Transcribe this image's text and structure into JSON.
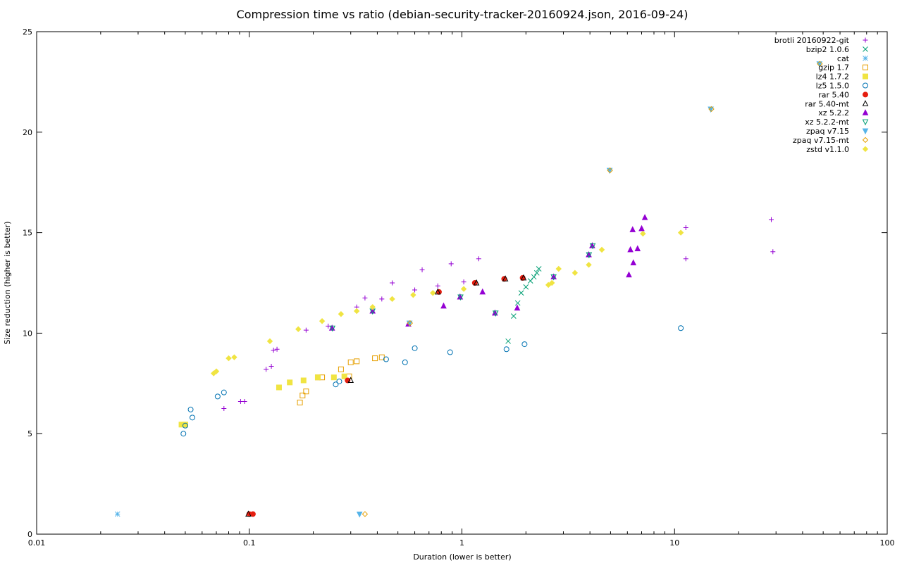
{
  "chart_data": {
    "type": "scatter",
    "title": "Compression time vs ratio (debian-security-tracker-20160924.json, 2016-09-24)",
    "xlabel": "Duration (lower is better)",
    "ylabel": "Size reduction (higher is better)",
    "xscale": "log",
    "xlim": [
      0.01,
      100
    ],
    "ylim": [
      0,
      25
    ],
    "x_ticks": [
      0.01,
      0.1,
      1,
      10,
      100
    ],
    "x_tick_labels": [
      "0.01",
      "0.1",
      "1",
      "10",
      "100"
    ],
    "y_ticks": [
      0,
      5,
      10,
      15,
      20,
      25
    ],
    "y_tick_labels": [
      "0",
      "5",
      "10",
      "15",
      "20",
      "25"
    ],
    "grid": false,
    "legend_position": "top-right",
    "series": [
      {
        "name": "brotli 20160922-git",
        "marker": "plus",
        "color": "#9400d3",
        "points": [
          [
            0.076,
            6.25
          ],
          [
            0.091,
            6.6
          ],
          [
            0.095,
            6.6
          ],
          [
            0.12,
            8.2
          ],
          [
            0.127,
            8.35
          ],
          [
            0.13,
            9.15
          ],
          [
            0.135,
            9.2
          ],
          [
            0.185,
            10.15
          ],
          [
            0.235,
            10.35
          ],
          [
            0.32,
            11.3
          ],
          [
            0.35,
            11.75
          ],
          [
            0.42,
            11.7
          ],
          [
            0.47,
            12.5
          ],
          [
            0.6,
            12.15
          ],
          [
            0.65,
            13.15
          ],
          [
            0.77,
            12.35
          ],
          [
            0.89,
            13.45
          ],
          [
            1.02,
            12.55
          ],
          [
            1.2,
            13.7
          ],
          [
            11.3,
            13.7
          ],
          [
            11.3,
            15.25
          ],
          [
            28.5,
            15.65
          ],
          [
            29.0,
            14.05
          ]
        ]
      },
      {
        "name": "bzip2 1.0.6",
        "marker": "x",
        "color": "#009e73",
        "points": [
          [
            1.65,
            9.6
          ],
          [
            1.75,
            10.85
          ],
          [
            1.83,
            11.5
          ],
          [
            1.9,
            12.0
          ],
          [
            2.0,
            12.3
          ],
          [
            2.1,
            12.6
          ],
          [
            2.18,
            12.8
          ],
          [
            2.25,
            13.0
          ],
          [
            2.3,
            13.2
          ]
        ]
      },
      {
        "name": "cat",
        "marker": "star",
        "color": "#56b4e9",
        "points": [
          [
            0.024,
            1.0
          ]
        ]
      },
      {
        "name": "gzip 1.7",
        "marker": "open-square",
        "color": "#e69f00",
        "points": [
          [
            0.173,
            6.55
          ],
          [
            0.178,
            6.9
          ],
          [
            0.185,
            7.1
          ],
          [
            0.21,
            7.8
          ],
          [
            0.22,
            7.8
          ],
          [
            0.27,
            8.2
          ],
          [
            0.3,
            8.55
          ],
          [
            0.32,
            8.6
          ],
          [
            0.39,
            8.75
          ],
          [
            0.42,
            8.8
          ],
          [
            0.295,
            7.85
          ]
        ]
      },
      {
        "name": "lz4 1.7.2",
        "marker": "filled-square",
        "color": "#f0e442",
        "points": [
          [
            0.048,
            5.45
          ],
          [
            0.05,
            5.45
          ],
          [
            0.138,
            7.3
          ],
          [
            0.155,
            7.55
          ],
          [
            0.18,
            7.65
          ],
          [
            0.21,
            7.8
          ],
          [
            0.25,
            7.8
          ],
          [
            0.28,
            7.85
          ]
        ]
      },
      {
        "name": "lz5 1.5.0",
        "marker": "open-circle",
        "color": "#0072b2",
        "points": [
          [
            0.049,
            5.0
          ],
          [
            0.05,
            5.4
          ],
          [
            0.053,
            6.2
          ],
          [
            0.054,
            5.8
          ],
          [
            0.071,
            6.85
          ],
          [
            0.076,
            7.05
          ],
          [
            0.255,
            7.45
          ],
          [
            0.265,
            7.6
          ],
          [
            0.44,
            8.7
          ],
          [
            0.54,
            8.55
          ],
          [
            0.6,
            9.25
          ],
          [
            0.88,
            9.05
          ],
          [
            1.62,
            9.2
          ],
          [
            1.97,
            9.45
          ],
          [
            10.7,
            10.25
          ]
        ]
      },
      {
        "name": "rar 5.40",
        "marker": "filled-circle",
        "color": "#e51e10",
        "points": [
          [
            0.1,
            1.0
          ],
          [
            0.104,
            1.0
          ],
          [
            0.29,
            7.65
          ],
          [
            0.78,
            12.05
          ],
          [
            1.15,
            12.5
          ],
          [
            1.58,
            12.7
          ],
          [
            1.93,
            12.75
          ]
        ]
      },
      {
        "name": "rar 5.40-mt",
        "marker": "open-triangle",
        "color": "#000000",
        "points": [
          [
            0.099,
            1.0
          ],
          [
            0.3,
            7.65
          ],
          [
            0.77,
            12.05
          ],
          [
            1.17,
            12.5
          ],
          [
            1.6,
            12.7
          ],
          [
            1.95,
            12.75
          ]
        ]
      },
      {
        "name": "xz 5.2.2",
        "marker": "filled-triangle",
        "color": "#9400d3",
        "points": [
          [
            0.245,
            10.25
          ],
          [
            0.38,
            11.1
          ],
          [
            0.56,
            10.45
          ],
          [
            0.82,
            11.35
          ],
          [
            0.98,
            11.8
          ],
          [
            1.25,
            12.05
          ],
          [
            1.43,
            11.0
          ],
          [
            1.82,
            11.25
          ],
          [
            2.7,
            12.8
          ],
          [
            3.95,
            13.9
          ],
          [
            4.1,
            14.35
          ],
          [
            6.1,
            12.9
          ],
          [
            6.2,
            14.15
          ],
          [
            6.35,
            15.15
          ],
          [
            6.4,
            13.5
          ],
          [
            6.7,
            14.2
          ],
          [
            7.0,
            15.2
          ],
          [
            7.25,
            15.75
          ]
        ]
      },
      {
        "name": "xz 5.2.2-mt",
        "marker": "open-inv-triangle",
        "color": "#009e73",
        "points": [
          [
            0.246,
            10.25
          ],
          [
            0.38,
            11.1
          ],
          [
            0.985,
            11.8
          ],
          [
            1.44,
            11.0
          ],
          [
            2.7,
            12.8
          ],
          [
            3.96,
            13.9
          ],
          [
            4.12,
            14.35
          ]
        ]
      },
      {
        "name": "zpaq v7.15",
        "marker": "filled-inv-triangle",
        "color": "#56b4e9",
        "points": [
          [
            0.33,
            1.0
          ],
          [
            0.567,
            10.5
          ],
          [
            4.95,
            18.1
          ],
          [
            14.8,
            21.15
          ],
          [
            48.0,
            23.4
          ]
        ]
      },
      {
        "name": "zpaq v7.15-mt",
        "marker": "open-diamond",
        "color": "#e69f00",
        "points": [
          [
            0.35,
            1.0
          ],
          [
            0.57,
            10.5
          ],
          [
            4.97,
            18.1
          ],
          [
            14.9,
            21.15
          ],
          [
            48.2,
            23.4
          ]
        ]
      },
      {
        "name": "zstd v1.1.0",
        "marker": "filled-diamond",
        "color": "#f0e442",
        "points": [
          [
            0.068,
            8.0
          ],
          [
            0.07,
            8.1
          ],
          [
            0.08,
            8.75
          ],
          [
            0.085,
            8.8
          ],
          [
            0.125,
            9.6
          ],
          [
            0.17,
            10.2
          ],
          [
            0.22,
            10.6
          ],
          [
            0.27,
            10.95
          ],
          [
            0.32,
            11.1
          ],
          [
            0.38,
            11.3
          ],
          [
            0.47,
            11.7
          ],
          [
            0.59,
            11.9
          ],
          [
            0.73,
            12.0
          ],
          [
            1.02,
            12.2
          ],
          [
            2.55,
            12.4
          ],
          [
            2.65,
            12.5
          ],
          [
            2.85,
            13.2
          ],
          [
            3.4,
            13.0
          ],
          [
            3.95,
            13.4
          ],
          [
            4.55,
            14.15
          ],
          [
            7.1,
            14.95
          ],
          [
            10.7,
            15.0
          ]
        ]
      }
    ]
  }
}
